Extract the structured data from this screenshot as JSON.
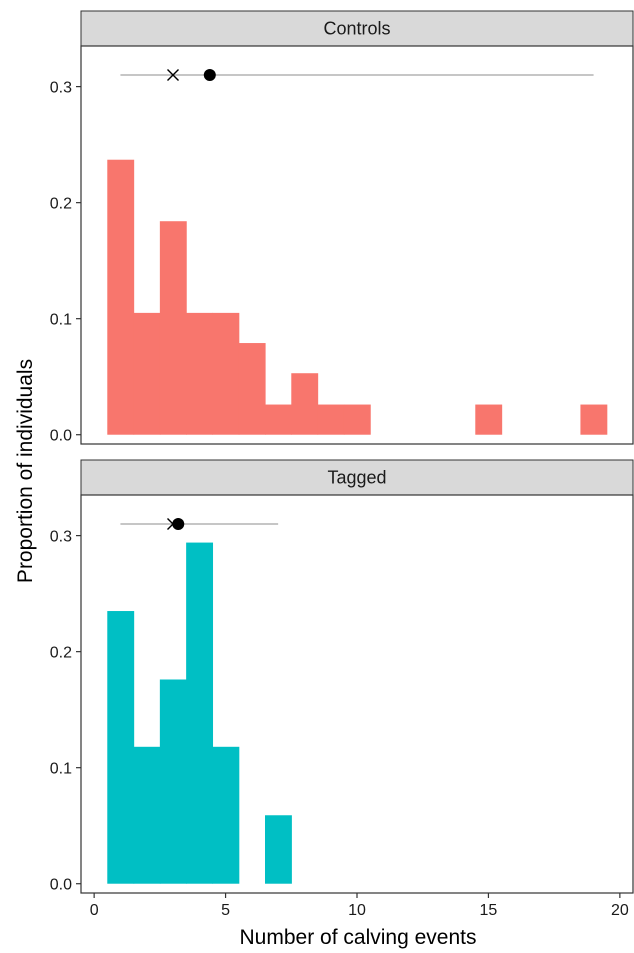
{
  "chart_data": {
    "type": "bar",
    "xlabel": "Number of calving events",
    "ylabel": "Proportion of individuals",
    "xlim": [
      -0.5,
      20.5
    ],
    "ylim": [
      -0.008,
      0.335
    ],
    "x_ticks": [
      0,
      5,
      10,
      15,
      20
    ],
    "y_ticks": [
      0.0,
      0.1,
      0.2,
      0.3
    ],
    "y_tick_labels": [
      "0.0",
      "0.1",
      "0.2",
      "0.3"
    ],
    "bin_width": 1,
    "grid": false,
    "facets": [
      {
        "label": "Controls",
        "color": "#F8766D",
        "bins": [
          {
            "x": 1,
            "value": 0.237
          },
          {
            "x": 2,
            "value": 0.105
          },
          {
            "x": 3,
            "value": 0.184
          },
          {
            "x": 4,
            "value": 0.105
          },
          {
            "x": 5,
            "value": 0.105
          },
          {
            "x": 6,
            "value": 0.079
          },
          {
            "x": 7,
            "value": 0.026
          },
          {
            "x": 8,
            "value": 0.053
          },
          {
            "x": 9,
            "value": 0.026
          },
          {
            "x": 10,
            "value": 0.026
          },
          {
            "x": 15,
            "value": 0.026
          },
          {
            "x": 19,
            "value": 0.026
          }
        ],
        "summary": {
          "y": 0.31,
          "range": [
            1,
            19
          ],
          "median": 3,
          "mean": 4.4
        }
      },
      {
        "label": "Tagged",
        "color": "#00BFC4",
        "bins": [
          {
            "x": 1,
            "value": 0.235
          },
          {
            "x": 2,
            "value": 0.118
          },
          {
            "x": 3,
            "value": 0.176
          },
          {
            "x": 4,
            "value": 0.294
          },
          {
            "x": 5,
            "value": 0.118
          },
          {
            "x": 7,
            "value": 0.059
          }
        ],
        "summary": {
          "y": 0.31,
          "range": [
            1,
            7
          ],
          "median": 3,
          "mean": 3.2
        }
      }
    ]
  }
}
